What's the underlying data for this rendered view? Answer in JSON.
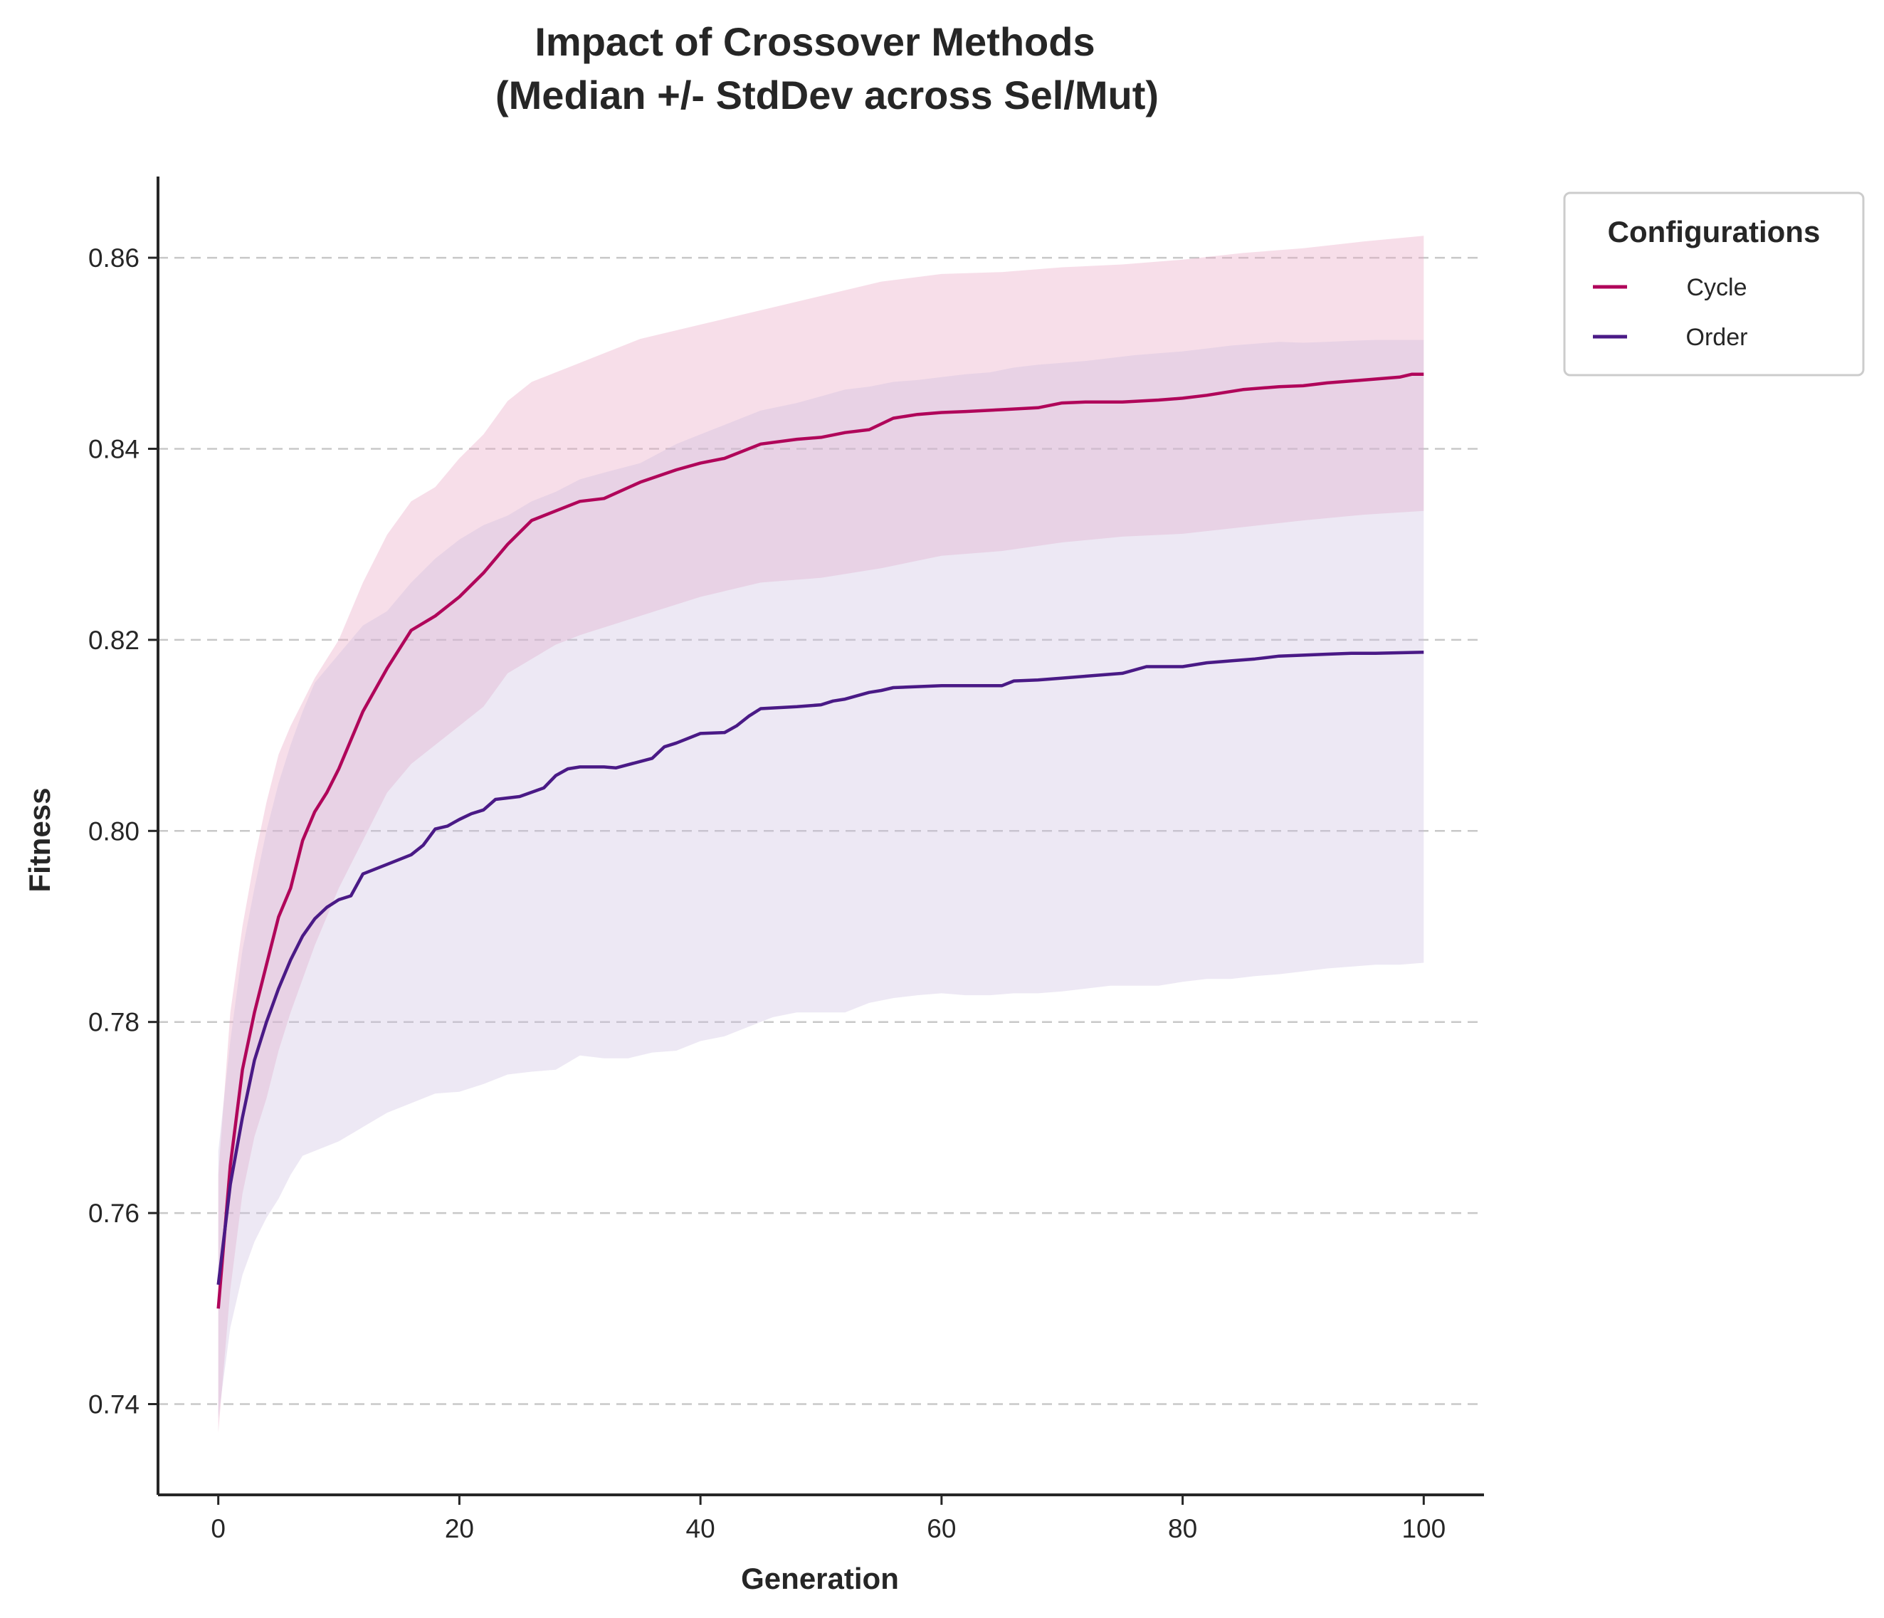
{
  "chart_data": {
    "type": "line",
    "title_line1": "Impact of Crossover Methods",
    "title_line2": "(Median +/- StdDev across Sel/Mut)",
    "xlabel": "Generation",
    "ylabel": "Fitness",
    "xlim": [
      -5,
      105
    ],
    "ylim": [
      0.7305,
      0.8685
    ],
    "xticks": [
      0,
      20,
      40,
      60,
      80,
      100
    ],
    "yticks": [
      0.74,
      0.76,
      0.78,
      0.8,
      0.82,
      0.84,
      0.86
    ],
    "xtick_labels": [
      "0",
      "20",
      "40",
      "60",
      "80",
      "100"
    ],
    "ytick_labels": [
      "0.74",
      "0.76",
      "0.78",
      "0.80",
      "0.82",
      "0.84",
      "0.86"
    ],
    "grid": "horizontal dashed",
    "legend": {
      "title": "Configurations",
      "placement": "outside upper-right"
    },
    "series": [
      {
        "name": "Cycle",
        "color": "#b0065a",
        "band_color": "#e9a9c6",
        "median": {
          "x": [
            0,
            1,
            2,
            3,
            4,
            5,
            6,
            7,
            8,
            9,
            10,
            12,
            14,
            16,
            18,
            20,
            22,
            24,
            26,
            28,
            30,
            32,
            35,
            38,
            40,
            42,
            45,
            48,
            50,
            52,
            54,
            56,
            58,
            60,
            62,
            65,
            68,
            70,
            72,
            75,
            78,
            80,
            82,
            85,
            88,
            90,
            92,
            95,
            98,
            99,
            100
          ],
          "y": [
            0.75,
            0.765,
            0.775,
            0.781,
            0.786,
            0.791,
            0.794,
            0.799,
            0.802,
            0.804,
            0.8065,
            0.8125,
            0.817,
            0.821,
            0.8225,
            0.8245,
            0.827,
            0.83,
            0.8325,
            0.8335,
            0.8345,
            0.8348,
            0.8365,
            0.8378,
            0.8385,
            0.839,
            0.8405,
            0.841,
            0.8412,
            0.8417,
            0.842,
            0.8432,
            0.8436,
            0.8438,
            0.8439,
            0.8441,
            0.8443,
            0.8448,
            0.8449,
            0.8449,
            0.8451,
            0.8453,
            0.8456,
            0.8462,
            0.8465,
            0.8466,
            0.8469,
            0.8472,
            0.8475,
            0.8478,
            0.8478
          ]
        },
        "upper": {
          "x": [
            0,
            1,
            2,
            3,
            4,
            5,
            6,
            8,
            10,
            12,
            14,
            16,
            18,
            20,
            22,
            24,
            26,
            28,
            30,
            35,
            40,
            45,
            50,
            55,
            60,
            65,
            70,
            75,
            80,
            85,
            90,
            95,
            100
          ],
          "y": [
            0.764,
            0.781,
            0.79,
            0.797,
            0.803,
            0.808,
            0.811,
            0.816,
            0.82,
            0.826,
            0.831,
            0.8345,
            0.836,
            0.839,
            0.8415,
            0.845,
            0.847,
            0.848,
            0.849,
            0.8515,
            0.853,
            0.8545,
            0.856,
            0.8575,
            0.8583,
            0.8585,
            0.859,
            0.8593,
            0.8598,
            0.8605,
            0.861,
            0.8617,
            0.8623
          ]
        },
        "lower": {
          "x": [
            0,
            1,
            2,
            3,
            4,
            5,
            6,
            8,
            10,
            12,
            14,
            16,
            18,
            20,
            22,
            24,
            26,
            28,
            30,
            35,
            40,
            45,
            50,
            55,
            60,
            65,
            70,
            75,
            80,
            85,
            90,
            95,
            100
          ],
          "y": [
            0.737,
            0.752,
            0.762,
            0.768,
            0.772,
            0.777,
            0.781,
            0.788,
            0.794,
            0.799,
            0.804,
            0.807,
            0.809,
            0.811,
            0.813,
            0.8165,
            0.818,
            0.8195,
            0.8205,
            0.8225,
            0.8245,
            0.826,
            0.8265,
            0.8275,
            0.8288,
            0.8293,
            0.8302,
            0.8308,
            0.8311,
            0.8318,
            0.8325,
            0.8331,
            0.8335
          ]
        }
      },
      {
        "name": "Order",
        "color": "#4a1a86",
        "band_color": "#cbbde0",
        "median": {
          "x": [
            0,
            1,
            2,
            3,
            4,
            5,
            6,
            7,
            8,
            9,
            10,
            11,
            12,
            14,
            16,
            17,
            18,
            19,
            20,
            21,
            22,
            23,
            25,
            27,
            28,
            29,
            30,
            32,
            33,
            36,
            37,
            38,
            40,
            42,
            43,
            44,
            45,
            48,
            50,
            51,
            52,
            54,
            55,
            56,
            58,
            60,
            62,
            65,
            66,
            68,
            70,
            72,
            75,
            77,
            80,
            82,
            84,
            86,
            88,
            90,
            92,
            94,
            96,
            100
          ],
          "y": [
            0.7525,
            0.763,
            0.77,
            0.776,
            0.78,
            0.7835,
            0.7865,
            0.789,
            0.7908,
            0.792,
            0.7928,
            0.7932,
            0.7955,
            0.7965,
            0.7975,
            0.7985,
            0.8002,
            0.8005,
            0.8012,
            0.8018,
            0.8022,
            0.8033,
            0.8036,
            0.8045,
            0.8058,
            0.8065,
            0.8067,
            0.8067,
            0.8066,
            0.8076,
            0.8088,
            0.8092,
            0.8102,
            0.8103,
            0.811,
            0.812,
            0.8128,
            0.813,
            0.8132,
            0.8136,
            0.8138,
            0.8145,
            0.8147,
            0.815,
            0.8151,
            0.8152,
            0.8152,
            0.8152,
            0.8157,
            0.8158,
            0.816,
            0.8162,
            0.8165,
            0.8172,
            0.8172,
            0.8176,
            0.8178,
            0.818,
            0.8183,
            0.8184,
            0.8185,
            0.8186,
            0.8186,
            0.8187
          ]
        },
        "upper": {
          "x": [
            0,
            1,
            2,
            3,
            4,
            5,
            6,
            7,
            8,
            10,
            12,
            14,
            16,
            18,
            20,
            22,
            24,
            26,
            28,
            30,
            32,
            35,
            38,
            40,
            42,
            45,
            48,
            50,
            52,
            54,
            56,
            58,
            60,
            62,
            64,
            66,
            68,
            70,
            72,
            74,
            76,
            78,
            80,
            82,
            84,
            86,
            88,
            90,
            92,
            94,
            96,
            98,
            100
          ],
          "y": [
            0.7665,
            0.778,
            0.7875,
            0.794,
            0.8,
            0.805,
            0.809,
            0.8125,
            0.8155,
            0.8185,
            0.8215,
            0.823,
            0.826,
            0.8285,
            0.8305,
            0.832,
            0.833,
            0.8345,
            0.8355,
            0.8368,
            0.8375,
            0.8385,
            0.8405,
            0.8415,
            0.8425,
            0.844,
            0.8448,
            0.8455,
            0.8462,
            0.8465,
            0.847,
            0.8472,
            0.8475,
            0.8478,
            0.848,
            0.8485,
            0.8488,
            0.849,
            0.8492,
            0.8495,
            0.8498,
            0.85,
            0.8502,
            0.8505,
            0.8508,
            0.851,
            0.8512,
            0.8511,
            0.8512,
            0.8513,
            0.8514,
            0.8514,
            0.8514
          ]
        },
        "lower": {
          "x": [
            0,
            1,
            2,
            3,
            4,
            5,
            6,
            7,
            8,
            10,
            12,
            14,
            16,
            18,
            20,
            22,
            24,
            26,
            28,
            30,
            32,
            34,
            36,
            38,
            40,
            42,
            44,
            46,
            48,
            50,
            52,
            54,
            56,
            58,
            60,
            62,
            64,
            66,
            68,
            70,
            72,
            74,
            76,
            78,
            80,
            82,
            84,
            86,
            88,
            90,
            92,
            94,
            96,
            98,
            100
          ],
          "y": [
            0.7385,
            0.748,
            0.7535,
            0.757,
            0.7595,
            0.7615,
            0.764,
            0.766,
            0.7665,
            0.7675,
            0.769,
            0.7705,
            0.7715,
            0.7725,
            0.7727,
            0.7735,
            0.7745,
            0.7748,
            0.775,
            0.7765,
            0.7762,
            0.7762,
            0.7768,
            0.777,
            0.778,
            0.7785,
            0.7795,
            0.7805,
            0.781,
            0.781,
            0.781,
            0.782,
            0.7825,
            0.7828,
            0.783,
            0.7828,
            0.7828,
            0.783,
            0.783,
            0.7832,
            0.7835,
            0.7838,
            0.7838,
            0.7838,
            0.7842,
            0.7845,
            0.7845,
            0.7848,
            0.785,
            0.7853,
            0.7856,
            0.7858,
            0.786,
            0.786,
            0.7862
          ]
        }
      }
    ]
  }
}
